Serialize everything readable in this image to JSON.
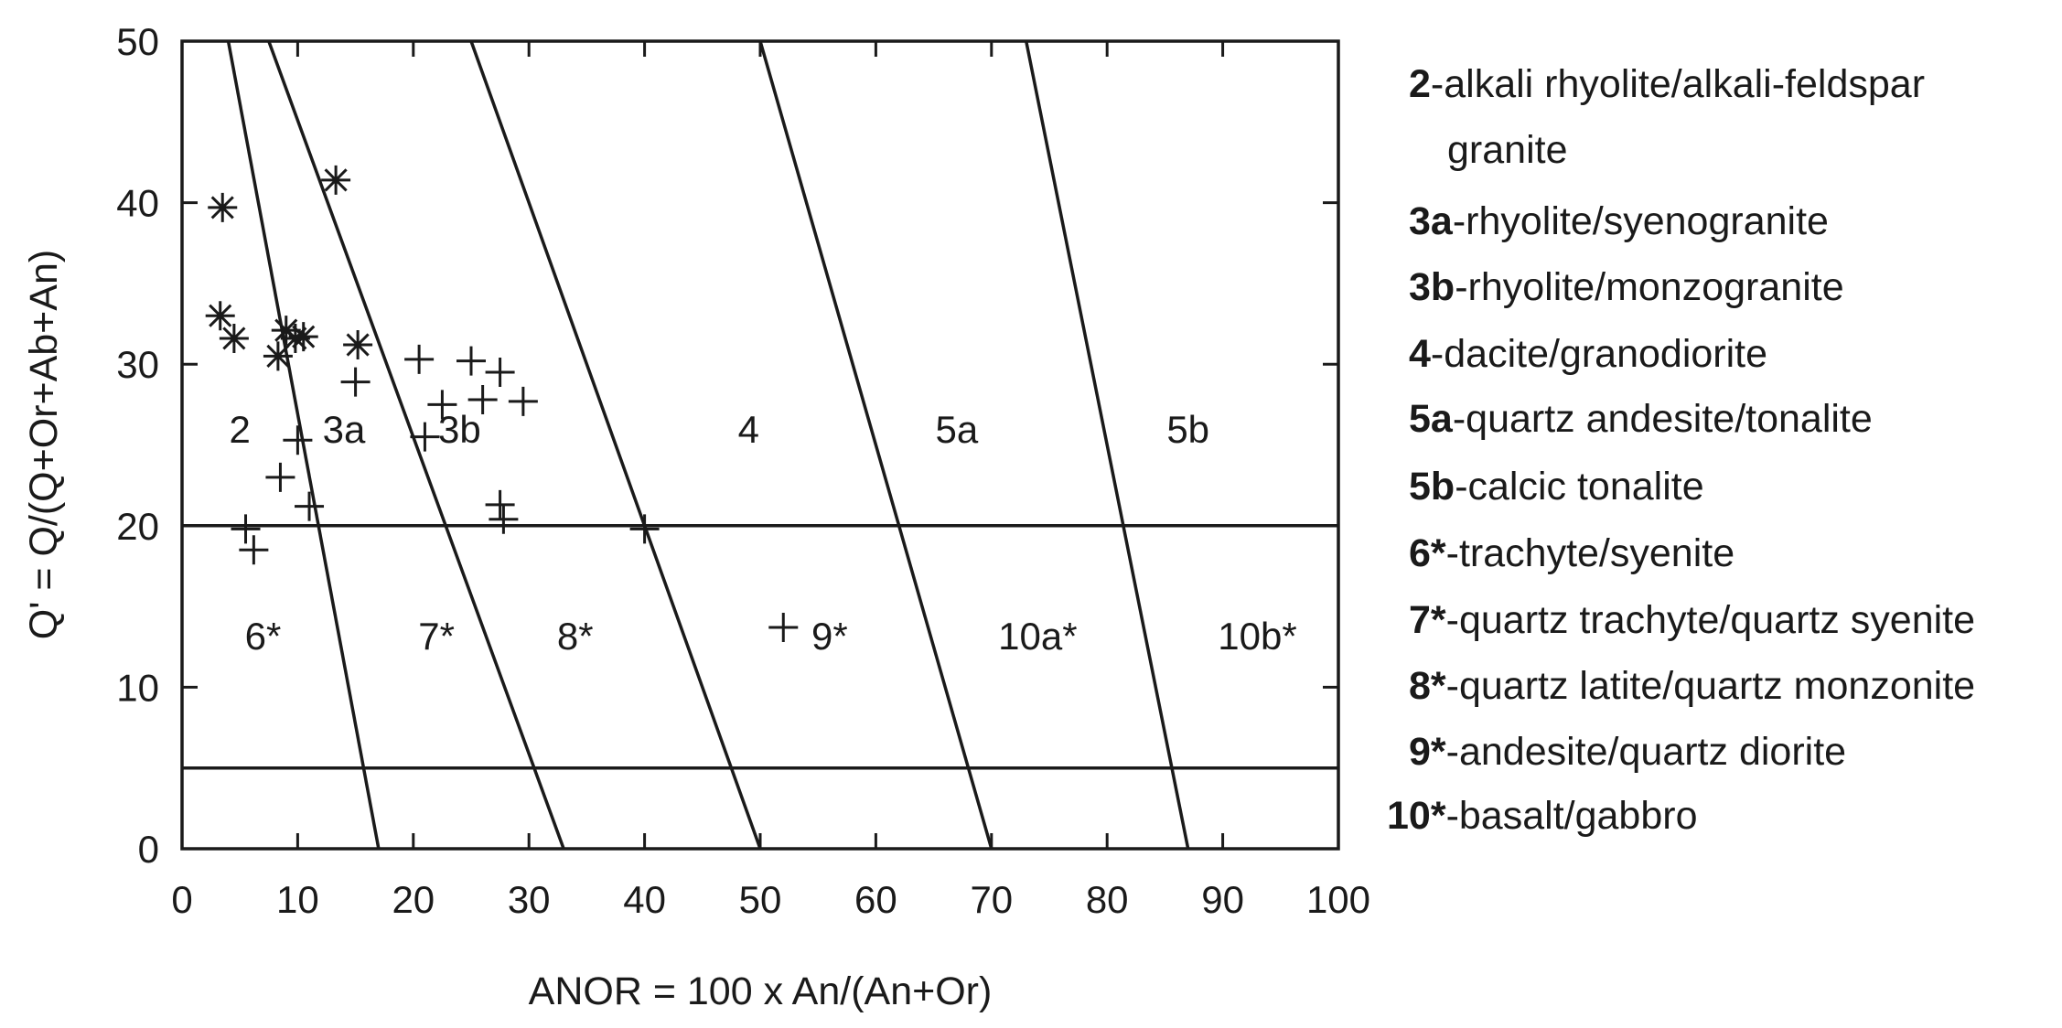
{
  "chart_data": {
    "type": "scatter",
    "xlabel": "ANOR = 100 x An/(An+Or)",
    "ylabel": "Q' = Q/(Q+Or+Ab+An)",
    "xlim": [
      0,
      100
    ],
    "ylim": [
      0,
      50
    ],
    "x_ticks": [
      0,
      10,
      20,
      30,
      40,
      50,
      60,
      70,
      80,
      90,
      100
    ],
    "y_ticks": [
      0,
      10,
      20,
      30,
      40,
      50
    ],
    "grid": false,
    "boundary_lines": [
      {
        "x1": 4,
        "y1": 50,
        "x2": 17,
        "y2": 0
      },
      {
        "x1": 7.5,
        "y1": 50,
        "x2": 33,
        "y2": 0
      },
      {
        "x1": 25,
        "y1": 50,
        "x2": 50,
        "y2": 0
      },
      {
        "x1": 50,
        "y1": 50,
        "x2": 70,
        "y2": 0
      },
      {
        "x1": 73,
        "y1": 50,
        "x2": 87,
        "y2": 0
      },
      {
        "x1": 0,
        "y1": 20,
        "x2": 100,
        "y2": 20
      },
      {
        "x1": 0,
        "y1": 5,
        "x2": 100,
        "y2": 5
      }
    ],
    "field_labels": [
      {
        "text": "2",
        "x": 5,
        "y": 26
      },
      {
        "text": "3a",
        "x": 14,
        "y": 26
      },
      {
        "text": "3b",
        "x": 24,
        "y": 26
      },
      {
        "text": "4",
        "x": 49,
        "y": 26
      },
      {
        "text": "5a",
        "x": 67,
        "y": 26
      },
      {
        "text": "5b",
        "x": 87,
        "y": 26
      },
      {
        "text": "6*",
        "x": 7,
        "y": 13.2
      },
      {
        "text": "7*",
        "x": 22,
        "y": 13.2
      },
      {
        "text": "8*",
        "x": 34,
        "y": 13.2
      },
      {
        "text": "9*",
        "x": 56,
        "y": 13.2
      },
      {
        "text": "10a*",
        "x": 74,
        "y": 13.2
      },
      {
        "text": "10b*",
        "x": 93,
        "y": 13.2
      }
    ],
    "series": [
      {
        "marker": "asterisk",
        "points": [
          [
            3.5,
            39.7
          ],
          [
            13.3,
            41.4
          ],
          [
            3.3,
            33.0
          ],
          [
            4.5,
            31.6
          ],
          [
            8.3,
            30.5
          ],
          [
            9.0,
            32.1
          ],
          [
            9.8,
            31.6
          ],
          [
            10.5,
            31.7
          ],
          [
            15.2,
            31.2
          ]
        ]
      },
      {
        "marker": "plus",
        "points": [
          [
            15.0,
            28.9
          ],
          [
            20.5,
            30.3
          ],
          [
            25.0,
            30.2
          ],
          [
            27.5,
            29.5
          ],
          [
            22.5,
            27.5
          ],
          [
            26.0,
            27.8
          ],
          [
            29.5,
            27.7
          ],
          [
            10.0,
            25.3
          ],
          [
            21.0,
            25.5
          ],
          [
            8.5,
            23.0
          ],
          [
            11.0,
            21.2
          ],
          [
            27.5,
            21.3
          ],
          [
            27.8,
            20.4
          ],
          [
            5.5,
            19.8
          ],
          [
            6.2,
            18.5
          ],
          [
            40.0,
            19.8
          ],
          [
            52.0,
            13.7
          ]
        ]
      }
    ]
  },
  "legend": [
    {
      "code": "2",
      "text": "-alkali rhyolite/alkali-feldspar"
    },
    {
      "code": "",
      "text": "granite"
    },
    {
      "code": "3a",
      "text": "-rhyolite/syenogranite"
    },
    {
      "code": "3b",
      "text": "-rhyolite/monzogranite"
    },
    {
      "code": "4",
      "text": "-dacite/granodiorite"
    },
    {
      "code": "5a",
      "text": "-quartz andesite/tonalite"
    },
    {
      "code": "5b",
      "text": "-calcic tonalite"
    },
    {
      "code": "6*",
      "text": "-trachyte/syenite"
    },
    {
      "code": "7*",
      "text": "-quartz trachyte/quartz syenite"
    },
    {
      "code": "8*",
      "text": "-quartz latite/quartz monzonite"
    },
    {
      "code": "9*",
      "text": "-andesite/quartz diorite"
    },
    {
      "code": "10*",
      "text": "-basalt/gabbro"
    }
  ]
}
